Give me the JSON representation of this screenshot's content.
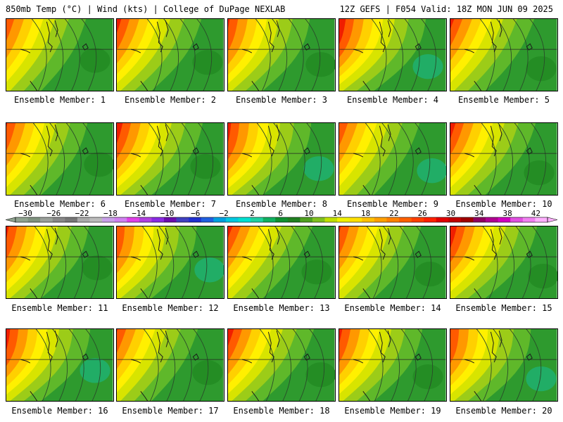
{
  "header": {
    "left_title": "850mb Temp (°C) | Wind (kts) | College of DuPage NEXLAB",
    "right_title": "12Z GEFS | F054 Valid: 18Z MON JUN 09 2025"
  },
  "members": [
    {
      "label": "Ensemble Member: 1"
    },
    {
      "label": "Ensemble Member: 2"
    },
    {
      "label": "Ensemble Member: 3"
    },
    {
      "label": "Ensemble Member: 4"
    },
    {
      "label": "Ensemble Member: 5"
    },
    {
      "label": "Ensemble Member: 6"
    },
    {
      "label": "Ensemble Member: 7"
    },
    {
      "label": "Ensemble Member: 8"
    },
    {
      "label": "Ensemble Member: 9"
    },
    {
      "label": "Ensemble Member: 10"
    },
    {
      "label": "Ensemble Member: 11"
    },
    {
      "label": "Ensemble Member: 12"
    },
    {
      "label": "Ensemble Member: 13"
    },
    {
      "label": "Ensemble Member: 14"
    },
    {
      "label": "Ensemble Member: 15"
    },
    {
      "label": "Ensemble Member: 16"
    },
    {
      "label": "Ensemble Member: 17"
    },
    {
      "label": "Ensemble Member: 18"
    },
    {
      "label": "Ensemble Member: 19"
    },
    {
      "label": "Ensemble Member: 20"
    }
  ],
  "colorbar": {
    "tick_labels": [
      "-30",
      "-26",
      "-22",
      "-18",
      "-14",
      "-10",
      "-6",
      "-2",
      "2",
      "6",
      "10",
      "14",
      "18",
      "22",
      "26",
      "30",
      "34",
      "38",
      "42"
    ],
    "colors": [
      "#8fa38f",
      "#7f937f",
      "#9aa09a",
      "#888888",
      "#777777",
      "#aaaaaa",
      "#bbbbbb",
      "#c8a0e8",
      "#d080f0",
      "#e040e8",
      "#b040e0",
      "#8a2be2",
      "#6a0dad",
      "#4040c0",
      "#2030d0",
      "#2060e0",
      "#00a0e0",
      "#00c8e0",
      "#00e0d0",
      "#20d0a0",
      "#10b060",
      "#109030",
      "#208020",
      "#50a020",
      "#80c020",
      "#c0e000",
      "#f0f000",
      "#ffe000",
      "#ffc000",
      "#ffa000",
      "#ff8000",
      "#ff6000",
      "#ff4000",
      "#ff2000",
      "#e00000",
      "#c00000",
      "#a00000",
      "#900060",
      "#b00090",
      "#d000c0",
      "#e050e0",
      "#f080f0",
      "#ffb0ff"
    ]
  }
}
